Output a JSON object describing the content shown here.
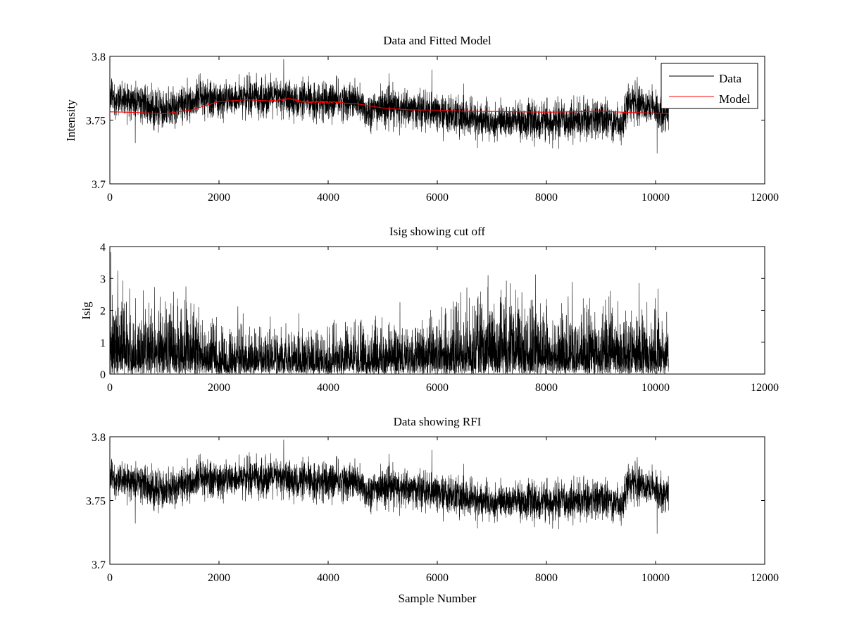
{
  "chart_data": [
    {
      "type": "line",
      "title": "Data and Fitted Model",
      "xlabel": "",
      "ylabel": "Intensity",
      "xlim": [
        0,
        12000
      ],
      "ylim": [
        3.7,
        3.8
      ],
      "xticks": [
        "0",
        "2000",
        "4000",
        "6000",
        "8000",
        "10000",
        "12000"
      ],
      "yticks": [
        "3.7",
        "3.75",
        "3.8"
      ],
      "legend": "top-right",
      "series": [
        {
          "name": "Data",
          "color": "#000000",
          "kind": "noisy",
          "n_points": 10240,
          "baseline": {
            "x": [
              0,
              500,
              1000,
              1500,
              1700,
              1750,
              2000,
              2500,
              3000,
              3500,
              4000,
              4500,
              4700,
              5000,
              5500,
              6000,
              6500,
              7000,
              7500,
              8000,
              8500,
              9000,
              9400,
              9500,
              9800,
              10000,
              10240
            ],
            "y": [
              3.768,
              3.763,
              3.758,
              3.764,
              3.77,
              3.766,
              3.766,
              3.768,
              3.768,
              3.765,
              3.765,
              3.765,
              3.757,
              3.76,
              3.759,
              3.756,
              3.752,
              3.748,
              3.75,
              3.748,
              3.75,
              3.751,
              3.748,
              3.765,
              3.762,
              3.758,
              3.755
            ]
          },
          "noise_amplitude": 0.007
        },
        {
          "name": "Model",
          "color": "#ff0000",
          "kind": "smooth",
          "x": [
            0,
            500,
            1000,
            1500,
            2000,
            2500,
            3000,
            3300,
            3500,
            4000,
            4500,
            5000,
            5500,
            6000,
            6500,
            7000,
            7500,
            8000,
            8500,
            9000,
            9500,
            10000,
            10240
          ],
          "y": [
            3.7565,
            3.756,
            3.755,
            3.758,
            3.7645,
            3.766,
            3.765,
            3.767,
            3.7645,
            3.764,
            3.763,
            3.7595,
            3.758,
            3.7578,
            3.757,
            3.7568,
            3.7565,
            3.7562,
            3.7565,
            3.757,
            3.756,
            3.7555,
            3.755
          ]
        }
      ]
    },
    {
      "type": "line",
      "title": "Isig showing cut off",
      "xlabel": "",
      "ylabel": "Isig",
      "xlim": [
        0,
        12000
      ],
      "ylim": [
        0,
        4
      ],
      "xticks": [
        "0",
        "2000",
        "4000",
        "6000",
        "8000",
        "10000",
        "12000"
      ],
      "yticks": [
        "0",
        "1",
        "2",
        "3",
        "4"
      ],
      "series": [
        {
          "color": "#000000",
          "kind": "abs-noise",
          "n_points": 10240,
          "scale": {
            "x": [
              0,
              500,
              1000,
              1500,
              1800,
              2500,
              3500,
              4500,
              5500,
              6000,
              6500,
              7000,
              7500,
              8000,
              8500,
              9000,
              9500,
              10000,
              10240
            ],
            "y": [
              1.1,
              0.85,
              0.95,
              1.0,
              0.6,
              0.6,
              0.6,
              0.65,
              0.7,
              0.75,
              0.9,
              1.05,
              1.0,
              0.9,
              0.85,
              0.9,
              0.8,
              0.8,
              0.85
            ]
          },
          "max": 3.9
        }
      ]
    },
    {
      "type": "line",
      "title": "Data showing RFI",
      "xlabel": "Sample Number",
      "ylabel": "",
      "xlim": [
        0,
        12000
      ],
      "ylim": [
        3.7,
        3.8
      ],
      "xticks": [
        "0",
        "2000",
        "4000",
        "6000",
        "8000",
        "10000",
        "12000"
      ],
      "yticks": [
        "3.7",
        "3.75",
        "3.8"
      ],
      "series": [
        {
          "color": "#000000",
          "kind": "noisy",
          "n_points": 10240,
          "baseline": {
            "x": [
              0,
              500,
              1000,
              1500,
              1700,
              1750,
              2000,
              2500,
              3000,
              3500,
              4000,
              4500,
              4700,
              5000,
              5500,
              6000,
              6500,
              7000,
              7500,
              8000,
              8500,
              9000,
              9400,
              9500,
              9800,
              10000,
              10240
            ],
            "y": [
              3.768,
              3.763,
              3.758,
              3.764,
              3.77,
              3.766,
              3.766,
              3.768,
              3.768,
              3.765,
              3.765,
              3.765,
              3.757,
              3.76,
              3.759,
              3.756,
              3.752,
              3.748,
              3.75,
              3.748,
              3.75,
              3.751,
              3.748,
              3.765,
              3.762,
              3.758,
              3.755
            ]
          },
          "noise_amplitude": 0.007
        }
      ]
    }
  ]
}
